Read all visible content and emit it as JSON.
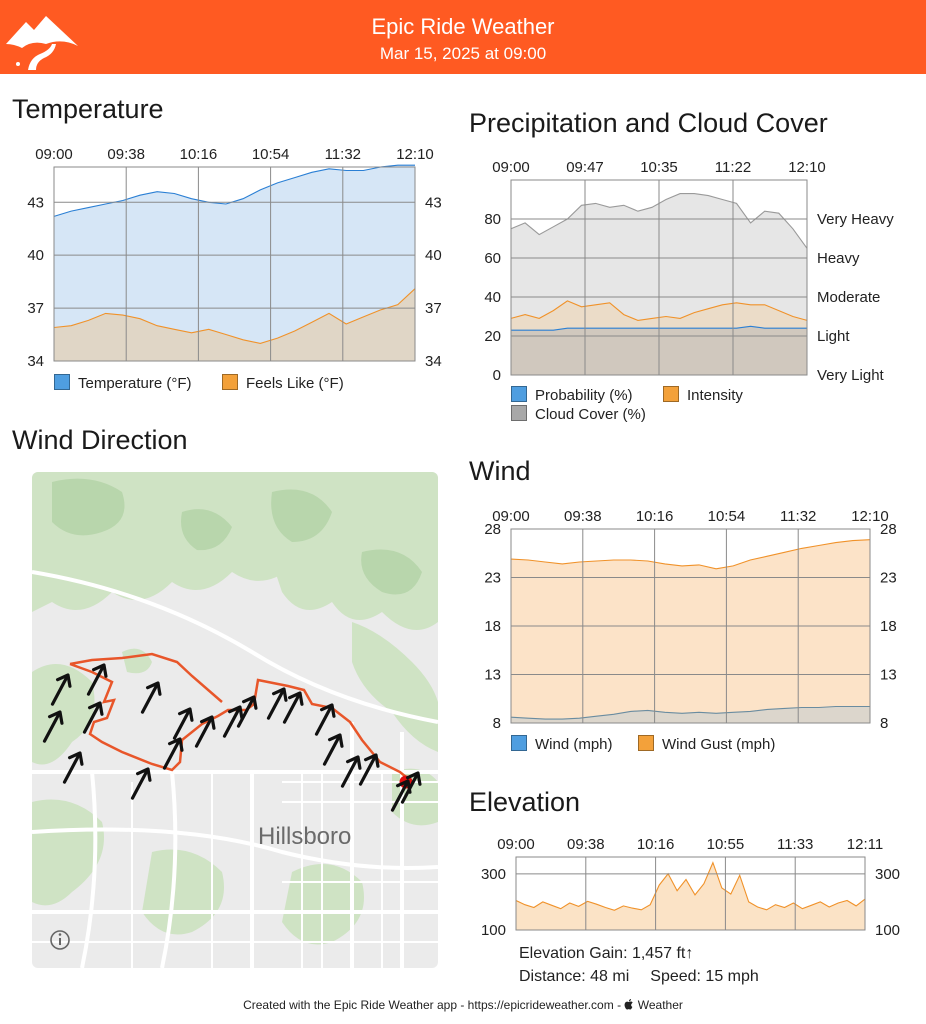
{
  "header": {
    "title": "Epic Ride Weather",
    "subtitle": "Mar 15, 2025 at 09:00",
    "logo_icon": "mountain-road-logo-icon",
    "background_color": "#ff5a22"
  },
  "temperature": {
    "title": "Temperature",
    "chart_data": {
      "type": "area",
      "x_ticks": [
        "09:00",
        "09:38",
        "10:16",
        "10:54",
        "11:32",
        "12:10"
      ],
      "y_ticks": [
        "43",
        "40",
        "37",
        "34"
      ],
      "ylim": [
        34,
        45
      ],
      "series": [
        {
          "name": "Temperature (°F)",
          "color": "#2a7fd4",
          "fill": "#d6e6f6",
          "values": [
            42.2,
            42.5,
            42.7,
            42.9,
            43.1,
            43.4,
            43.6,
            43.5,
            43.2,
            43.0,
            42.9,
            43.2,
            43.7,
            44.1,
            44.4,
            44.7,
            44.9,
            44.8,
            44.8,
            45.0,
            45.1,
            45.1
          ]
        },
        {
          "name": "Feels Like (°F)",
          "color": "#f0922a",
          "fill": "#e0d6c6",
          "values": [
            35.9,
            36.0,
            36.3,
            36.7,
            36.6,
            36.4,
            36.0,
            35.8,
            35.6,
            35.8,
            35.5,
            35.2,
            35.0,
            35.3,
            35.7,
            36.2,
            36.7,
            36.1,
            36.5,
            36.9,
            37.2,
            38.1
          ]
        }
      ]
    },
    "legend": [
      "Temperature (°F)",
      "Feels Like (°F)"
    ]
  },
  "precipitation": {
    "title": "Precipitation and Cloud Cover",
    "chart_data": {
      "type": "area",
      "x_ticks": [
        "09:00",
        "09:47",
        "10:35",
        "11:22",
        "12:10"
      ],
      "y_ticks": [
        "80",
        "60",
        "40",
        "20",
        "0"
      ],
      "ylim": [
        0,
        100
      ],
      "right_labels": [
        "Very Heavy",
        "Heavy",
        "Moderate",
        "Light",
        "Very Light"
      ],
      "series": [
        {
          "name": "Cloud Cover (%)",
          "color": "#9a9a9a",
          "fill": "#e6e6e6",
          "values": [
            75,
            78,
            72,
            76,
            80,
            87,
            88,
            86,
            87,
            84,
            86,
            90,
            93,
            93,
            92,
            90,
            88,
            78,
            84,
            83,
            75,
            65
          ]
        },
        {
          "name": "Intensity",
          "color": "#f0922a",
          "fill": "#ebdcc8",
          "values": [
            29,
            31,
            29,
            33,
            38,
            35,
            36,
            37,
            31,
            28,
            29,
            30,
            29,
            32,
            34,
            36,
            37,
            36,
            36,
            33,
            30,
            28
          ]
        },
        {
          "name": "Probability (%)",
          "color": "#2a7fd4",
          "fill": "#d0c8be",
          "values": [
            23,
            23,
            23,
            23,
            24,
            24,
            24,
            24,
            24,
            24,
            24,
            24,
            24,
            24,
            24,
            24,
            24,
            25,
            24,
            24,
            24,
            24
          ]
        }
      ]
    },
    "legend": [
      "Probability (%)",
      "Intensity",
      "Cloud Cover (%)"
    ]
  },
  "wind_direction": {
    "title": "Wind Direction",
    "map_label": "Hillsboro",
    "info_icon": "info-icon",
    "arrow_icon": "wind-arrow-icon",
    "route_color": "#e8562a",
    "end_marker_color": "#e01010"
  },
  "wind": {
    "title": "Wind",
    "chart_data": {
      "type": "area",
      "x_ticks": [
        "09:00",
        "09:38",
        "10:16",
        "10:54",
        "11:32",
        "12:10"
      ],
      "y_ticks": [
        "28",
        "23",
        "18",
        "13",
        "8"
      ],
      "ylim": [
        8,
        28
      ],
      "series": [
        {
          "name": "Wind Gust (mph)",
          "color": "#f0922a",
          "fill": "#fce3c8",
          "values": [
            24.9,
            24.8,
            24.6,
            24.4,
            24.6,
            24.7,
            24.8,
            24.8,
            24.7,
            24.4,
            24.2,
            24.3,
            23.9,
            24.2,
            24.8,
            25.2,
            25.6,
            26.0,
            26.3,
            26.6,
            26.8,
            26.9
          ]
        },
        {
          "name": "Wind (mph)",
          "color": "#6a8ca0",
          "fill": "#dcd6cc",
          "values": [
            8.6,
            8.5,
            8.4,
            8.4,
            8.5,
            8.7,
            8.9,
            9.2,
            9.3,
            9.1,
            9.0,
            9.1,
            9.0,
            9.1,
            9.2,
            9.4,
            9.5,
            9.6,
            9.6,
            9.7,
            9.7,
            9.7
          ]
        }
      ]
    },
    "legend": [
      "Wind (mph)",
      "Wind Gust (mph)"
    ]
  },
  "elevation": {
    "title": "Elevation",
    "chart_data": {
      "type": "area",
      "x_ticks": [
        "09:00",
        "09:38",
        "10:16",
        "10:55",
        "11:33",
        "12:11"
      ],
      "y_ticks": [
        "300",
        "100"
      ],
      "ylim": [
        100,
        360
      ],
      "series": [
        {
          "name": "Elevation",
          "color": "#f0922a",
          "fill": "#fbe3c6",
          "values": [
            205,
            190,
            180,
            200,
            188,
            176,
            196,
            184,
            202,
            192,
            180,
            170,
            186,
            178,
            172,
            190,
            260,
            300,
            240,
            280,
            225,
            265,
            340,
            250,
            228,
            295,
            200,
            182,
            172,
            190,
            180,
            196,
            176,
            188,
            200,
            182,
            196,
            205,
            186,
            210
          ]
        }
      ]
    },
    "stats": {
      "gain": "Elevation Gain: 1,457 ft↑",
      "distance": "Distance: 48 mi",
      "speed": "Speed: 15 mph"
    }
  },
  "footer": {
    "text": "Created with the Epic Ride Weather app - https://epicrideweather.com - ",
    "weather_label": "Weather",
    "apple_icon": "apple-logo-icon"
  }
}
